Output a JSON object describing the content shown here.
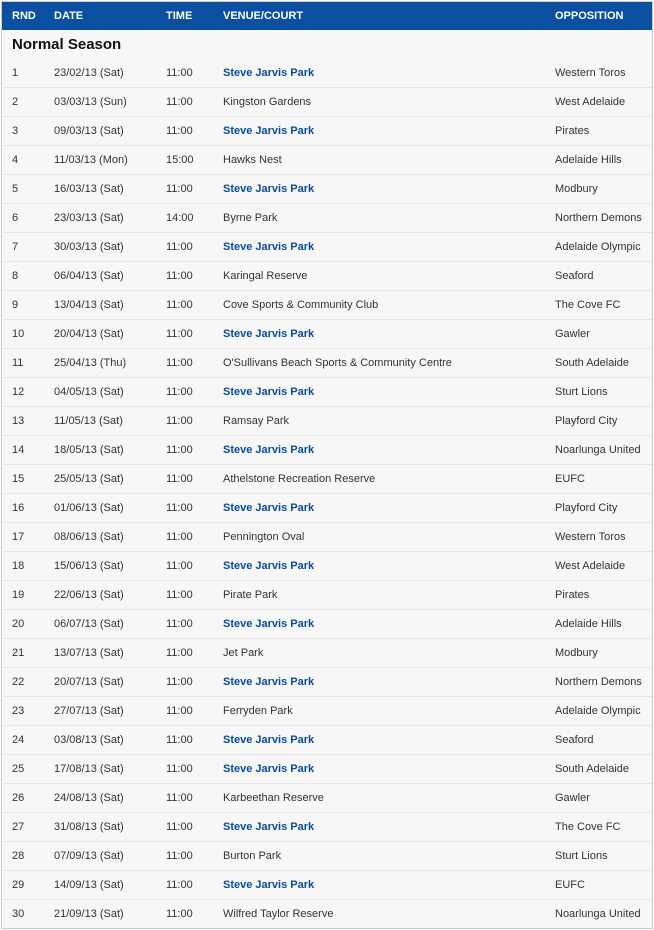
{
  "header": {
    "rnd": "RND",
    "date": "DATE",
    "time": "TIME",
    "venue": "VENUE/COURT",
    "opposition": "OPPOSITION"
  },
  "section_title": "Normal Season",
  "home_venue": "Steve Jarvis Park",
  "colors": {
    "header_bg": "#0b4fa0",
    "header_text": "#ffffff",
    "row_bg": "#f7f7f7",
    "row_border": "#e6e6e6",
    "link": "#084c9e",
    "text": "#333333"
  },
  "rows": [
    {
      "rnd": "1",
      "date": "23/02/13 (Sat)",
      "time": "11:00",
      "venue": "Steve Jarvis Park",
      "venue_link": true,
      "opp": "Western Toros"
    },
    {
      "rnd": "2",
      "date": "03/03/13 (Sun)",
      "time": "11:00",
      "venue": "Kingston Gardens",
      "venue_link": false,
      "opp": "West Adelaide"
    },
    {
      "rnd": "3",
      "date": "09/03/13 (Sat)",
      "time": "11:00",
      "venue": "Steve Jarvis Park",
      "venue_link": true,
      "opp": "Pirates"
    },
    {
      "rnd": "4",
      "date": "11/03/13 (Mon)",
      "time": "15:00",
      "venue": "Hawks Nest",
      "venue_link": false,
      "opp": "Adelaide Hills"
    },
    {
      "rnd": "5",
      "date": "16/03/13 (Sat)",
      "time": "11:00",
      "venue": "Steve Jarvis Park",
      "venue_link": true,
      "opp": "Modbury"
    },
    {
      "rnd": "6",
      "date": "23/03/13 (Sat)",
      "time": "14:00",
      "venue": "Byrne Park",
      "venue_link": false,
      "opp": "Northern Demons"
    },
    {
      "rnd": "7",
      "date": "30/03/13 (Sat)",
      "time": "11:00",
      "venue": "Steve Jarvis Park",
      "venue_link": true,
      "opp": "Adelaide Olympic"
    },
    {
      "rnd": "8",
      "date": "06/04/13 (Sat)",
      "time": "11:00",
      "venue": "Karingal Reserve",
      "venue_link": false,
      "opp": "Seaford"
    },
    {
      "rnd": "9",
      "date": "13/04/13 (Sat)",
      "time": "11:00",
      "venue": "Cove Sports & Community Club",
      "venue_link": false,
      "opp": "The Cove FC"
    },
    {
      "rnd": "10",
      "date": "20/04/13 (Sat)",
      "time": "11:00",
      "venue": "Steve Jarvis Park",
      "venue_link": true,
      "opp": "Gawler"
    },
    {
      "rnd": "11",
      "date": "25/04/13 (Thu)",
      "time": "11:00",
      "venue": "O'Sullivans Beach Sports & Community Centre",
      "venue_link": false,
      "opp": "South Adelaide"
    },
    {
      "rnd": "12",
      "date": "04/05/13 (Sat)",
      "time": "11:00",
      "venue": "Steve Jarvis Park",
      "venue_link": true,
      "opp": "Sturt Lions"
    },
    {
      "rnd": "13",
      "date": "11/05/13 (Sat)",
      "time": "11:00",
      "venue": "Ramsay Park",
      "venue_link": false,
      "opp": "Playford City"
    },
    {
      "rnd": "14",
      "date": "18/05/13 (Sat)",
      "time": "11:00",
      "venue": "Steve Jarvis Park",
      "venue_link": true,
      "opp": "Noarlunga United"
    },
    {
      "rnd": "15",
      "date": "25/05/13 (Sat)",
      "time": "11:00",
      "venue": "Athelstone Recreation Reserve",
      "venue_link": false,
      "opp": "EUFC"
    },
    {
      "rnd": "16",
      "date": "01/06/13 (Sat)",
      "time": "11:00",
      "venue": "Steve Jarvis Park",
      "venue_link": true,
      "opp": "Playford City"
    },
    {
      "rnd": "17",
      "date": "08/06/13 (Sat)",
      "time": "11:00",
      "venue": "Pennington Oval",
      "venue_link": false,
      "opp": "Western Toros"
    },
    {
      "rnd": "18",
      "date": "15/06/13 (Sat)",
      "time": "11:00",
      "venue": "Steve Jarvis Park",
      "venue_link": true,
      "opp": "West Adelaide"
    },
    {
      "rnd": "19",
      "date": "22/06/13 (Sat)",
      "time": "11:00",
      "venue": "Pirate Park",
      "venue_link": false,
      "opp": "Pirates"
    },
    {
      "rnd": "20",
      "date": "06/07/13 (Sat)",
      "time": "11:00",
      "venue": "Steve Jarvis Park",
      "venue_link": true,
      "opp": "Adelaide Hills"
    },
    {
      "rnd": "21",
      "date": "13/07/13 (Sat)",
      "time": "11:00",
      "venue": "Jet Park",
      "venue_link": false,
      "opp": "Modbury"
    },
    {
      "rnd": "22",
      "date": "20/07/13 (Sat)",
      "time": "11:00",
      "venue": "Steve Jarvis Park",
      "venue_link": true,
      "opp": "Northern Demons"
    },
    {
      "rnd": "23",
      "date": "27/07/13 (Sat)",
      "time": "11:00",
      "venue": "Ferryden Park",
      "venue_link": false,
      "opp": "Adelaide Olympic"
    },
    {
      "rnd": "24",
      "date": "03/08/13 (Sat)",
      "time": "11:00",
      "venue": "Steve Jarvis Park",
      "venue_link": true,
      "opp": "Seaford"
    },
    {
      "rnd": "25",
      "date": "17/08/13 (Sat)",
      "time": "11:00",
      "venue": "Steve Jarvis Park",
      "venue_link": true,
      "opp": "South Adelaide"
    },
    {
      "rnd": "26",
      "date": "24/08/13 (Sat)",
      "time": "11:00",
      "venue": "Karbeethan Reserve",
      "venue_link": false,
      "opp": "Gawler"
    },
    {
      "rnd": "27",
      "date": "31/08/13 (Sat)",
      "time": "11:00",
      "venue": "Steve Jarvis Park",
      "venue_link": true,
      "opp": "The Cove FC"
    },
    {
      "rnd": "28",
      "date": "07/09/13 (Sat)",
      "time": "11:00",
      "venue": "Burton Park",
      "venue_link": false,
      "opp": "Sturt Lions"
    },
    {
      "rnd": "29",
      "date": "14/09/13 (Sat)",
      "time": "11:00",
      "venue": "Steve Jarvis Park",
      "venue_link": true,
      "opp": "EUFC"
    },
    {
      "rnd": "30",
      "date": "21/09/13 (Sat)",
      "time": "11:00",
      "venue": "Wilfred Taylor Reserve",
      "venue_link": false,
      "opp": "Noarlunga United"
    }
  ]
}
